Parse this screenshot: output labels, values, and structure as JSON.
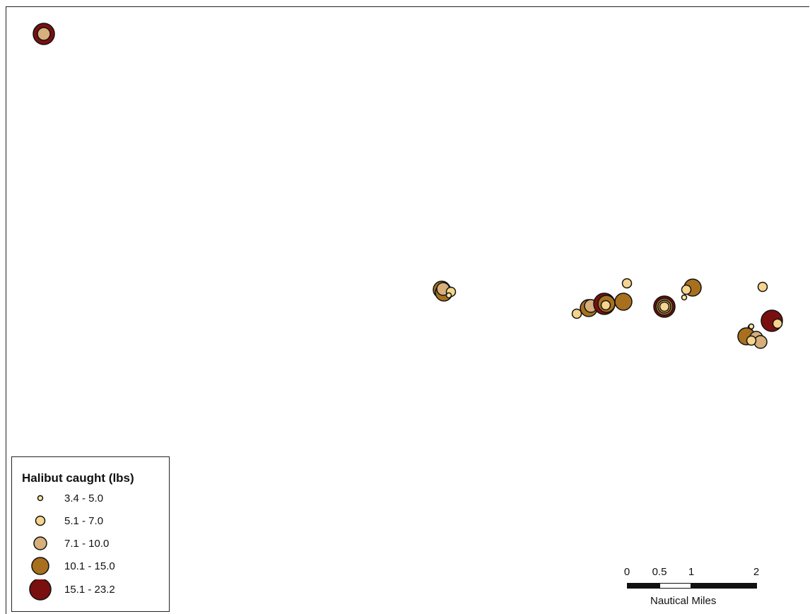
{
  "legend": {
    "title": "Halibut caught (lbs)",
    "classes": [
      {
        "label": "3.4 - 5.0",
        "color": "#FCE8A0"
      },
      {
        "label": "5.1 - 7.0",
        "color": "#F6D48C"
      },
      {
        "label": "7.1 - 10.0",
        "color": "#D6AF7B"
      },
      {
        "label": "10.1 - 15.0",
        "color": "#A8701E"
      },
      {
        "label": "15.1 - 23.2",
        "color": "#7A0F0F"
      }
    ]
  },
  "scale_bar": {
    "ticks": [
      "0",
      "0.5",
      "1",
      "2"
    ],
    "units": "Nautical Miles"
  },
  "catch_points": [
    {
      "class": 4
    },
    {
      "class": 2
    },
    {
      "class": 3
    },
    {
      "class": 3
    },
    {
      "class": 2
    },
    {
      "class": 1
    },
    {
      "class": 0
    },
    {
      "class": 1
    },
    {
      "class": 3
    },
    {
      "class": 2
    },
    {
      "class": 1
    },
    {
      "class": 4
    },
    {
      "class": 3
    },
    {
      "class": 3
    },
    {
      "class": 1
    },
    {
      "class": 4
    },
    {
      "class": 3
    },
    {
      "class": 2
    },
    {
      "class": 1
    },
    {
      "class": 0
    },
    {
      "class": 3
    },
    {
      "class": 1
    },
    {
      "class": 0
    },
    {
      "class": 1
    },
    {
      "class": 4
    },
    {
      "class": 1
    },
    {
      "class": 3
    },
    {
      "class": 2
    },
    {
      "class": 2
    },
    {
      "class": 1
    },
    {
      "class": 0
    }
  ]
}
